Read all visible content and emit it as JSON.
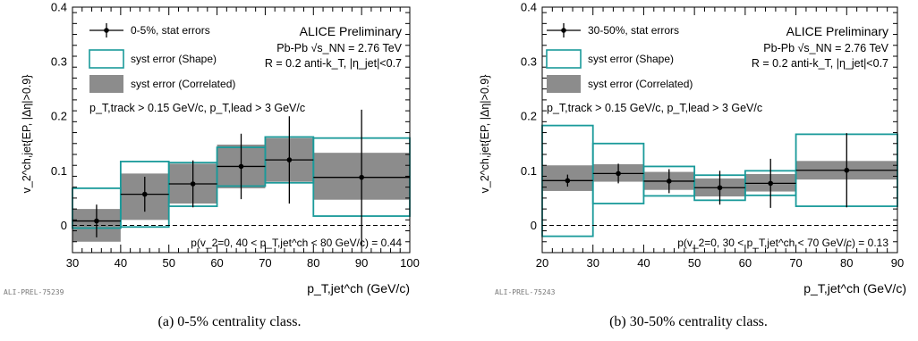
{
  "chart_data": [
    {
      "type": "scatter",
      "id": "a",
      "caption": "(a) 0-5% centrality class.",
      "preliminary_tag": "ALI-PREL-75239",
      "experiment_label": "ALICE Preliminary",
      "collision_line": "Pb-Pb √s_NN = 2.76 TeV",
      "jet_line": "R = 0.2 anti-k_T, |η_jet|<0.7",
      "cuts_line": "p_T,track > 0.15 GeV/c, p_T,lead > 3 GeV/c",
      "pvalue_line": "p(v_2=0, 40 < p_T,jet^ch < 80 GeV/c) = 0.44",
      "xlabel": "p_T,jet^ch (GeV/c)",
      "ylabel": "v_2^ch,jet{EP, |Δη|>0.9}",
      "xlim": [
        30,
        100
      ],
      "ylim": [
        -0.05,
        0.4
      ],
      "xticks": [
        "30",
        "40",
        "50",
        "60",
        "70",
        "80",
        "90",
        "100"
      ],
      "yticks": [
        "0",
        "0.1",
        "0.2",
        "0.3",
        "0.4"
      ],
      "legend": {
        "position": "top-left",
        "entries": [
          "0-5%, stat errors",
          "syst error (Shape)",
          "syst error (Correlated)"
        ]
      },
      "colors": {
        "shape": "#1a9a9a",
        "correlated": "#8c8c8c",
        "points": "#000000"
      },
      "bins": [
        {
          "x_low": 30,
          "x_high": 40,
          "x": 35,
          "y": 0.008,
          "stat": 0.03,
          "shape": [
            -0.005,
            0.068
          ],
          "corr": [
            -0.03,
            0.03
          ]
        },
        {
          "x_low": 40,
          "x_high": 50,
          "x": 45,
          "y": 0.057,
          "stat": 0.032,
          "shape": [
            -0.003,
            0.117
          ],
          "corr": [
            0.01,
            0.095
          ]
        },
        {
          "x_low": 50,
          "x_high": 60,
          "x": 55,
          "y": 0.076,
          "stat": 0.043,
          "shape": [
            0.035,
            0.115
          ],
          "corr": [
            0.04,
            0.113
          ]
        },
        {
          "x_low": 60,
          "x_high": 70,
          "x": 65,
          "y": 0.108,
          "stat": 0.06,
          "shape": [
            0.072,
            0.143
          ],
          "corr": [
            0.068,
            0.148
          ]
        },
        {
          "x_low": 70,
          "x_high": 80,
          "x": 75,
          "y": 0.12,
          "stat": 0.08,
          "shape": [
            0.078,
            0.162
          ],
          "corr": [
            0.08,
            0.16
          ]
        },
        {
          "x_low": 80,
          "x_high": 100,
          "x": 90,
          "y": 0.088,
          "stat": 0.124,
          "shape": [
            0.017,
            0.16
          ],
          "corr": [
            0.047,
            0.133
          ]
        }
      ]
    },
    {
      "type": "scatter",
      "id": "b",
      "caption": "(b) 30-50% centrality class.",
      "preliminary_tag": "ALI-PREL-75243",
      "experiment_label": "ALICE Preliminary",
      "collision_line": "Pb-Pb √s_NN = 2.76 TeV",
      "jet_line": "R = 0.2 anti-k_T, |η_jet|<0.7",
      "cuts_line": "p_T,track > 0.15 GeV/c, p_T,lead > 3 GeV/c",
      "pvalue_line": "p(v_2=0, 30 < p_T,jet^ch < 70 GeV/c) = 0.13",
      "xlabel": "p_T,jet^ch (GeV/c)",
      "ylabel": "v_2^ch,jet{EP, |Δη|>0.9}",
      "xlim": [
        20,
        90
      ],
      "ylim": [
        -0.05,
        0.4
      ],
      "xticks": [
        "20",
        "30",
        "40",
        "50",
        "60",
        "70",
        "80",
        "90"
      ],
      "yticks": [
        "0",
        "0.1",
        "0.2",
        "0.3",
        "0.4"
      ],
      "legend": {
        "position": "top-left",
        "entries": [
          "30-50%, stat errors",
          "syst error (Shape)",
          "syst error (Correlated)"
        ]
      },
      "colors": {
        "shape": "#1a9a9a",
        "correlated": "#8c8c8c",
        "points": "#000000"
      },
      "bins": [
        {
          "x_low": 20,
          "x_high": 30,
          "x": 25,
          "y": 0.082,
          "stat": 0.011,
          "shape": [
            -0.02,
            0.183
          ],
          "corr": [
            0.063,
            0.11
          ]
        },
        {
          "x_low": 30,
          "x_high": 40,
          "x": 35,
          "y": 0.095,
          "stat": 0.018,
          "shape": [
            0.04,
            0.15
          ],
          "corr": [
            0.08,
            0.112
          ]
        },
        {
          "x_low": 40,
          "x_high": 50,
          "x": 45,
          "y": 0.081,
          "stat": 0.022,
          "shape": [
            0.054,
            0.108
          ],
          "corr": [
            0.065,
            0.098
          ]
        },
        {
          "x_low": 50,
          "x_high": 60,
          "x": 55,
          "y": 0.069,
          "stat": 0.031,
          "shape": [
            0.046,
            0.092
          ],
          "corr": [
            0.053,
            0.086
          ]
        },
        {
          "x_low": 60,
          "x_high": 70,
          "x": 65,
          "y": 0.077,
          "stat": 0.045,
          "shape": [
            0.055,
            0.1
          ],
          "corr": [
            0.062,
            0.094
          ]
        },
        {
          "x_low": 70,
          "x_high": 90,
          "x": 80,
          "y": 0.101,
          "stat": 0.068,
          "shape": [
            0.035,
            0.167
          ],
          "corr": [
            0.084,
            0.118
          ]
        }
      ]
    }
  ]
}
